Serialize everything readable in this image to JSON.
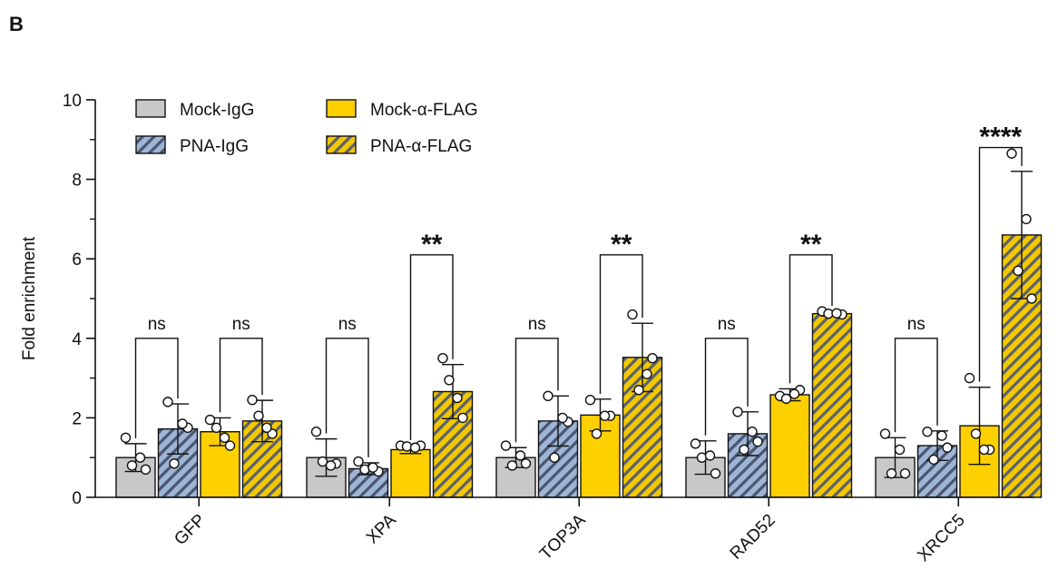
{
  "panel_label": "B",
  "colors": {
    "mock_igg": "#c8c8c8",
    "pna_igg_base": "#9fb5d6",
    "pna_igg_stripe": "#4a5670",
    "mock_flag": "#ffd000",
    "pna_flag_base": "#f2c800",
    "pna_flag_stripe": "#5b6070",
    "axis": "#111111"
  },
  "chart_data": {
    "type": "bar",
    "title": "",
    "xlabel": "",
    "ylabel": "Fold enrichment",
    "ylim": [
      0,
      10
    ],
    "yticks": [
      "0",
      "2",
      "4",
      "6",
      "8",
      "10"
    ],
    "categories": [
      "GFP",
      "XPA",
      "TOP3A",
      "RAD52",
      "XRCC5"
    ],
    "legend": {
      "placement": "top-left",
      "columns": 2
    },
    "series": [
      {
        "name": "Mock-IgG",
        "pattern": "solid-gray",
        "values": [
          1.0,
          1.0,
          1.0,
          1.0,
          1.0
        ],
        "sd": [
          0.35,
          0.47,
          0.25,
          0.42,
          0.5
        ],
        "points": [
          [
            1.5,
            0.7,
            0.8,
            1.0
          ],
          [
            1.65,
            0.85,
            0.9,
            0.8
          ],
          [
            1.3,
            0.85,
            0.8,
            1.05
          ],
          [
            1.35,
            0.6,
            1.0,
            1.05
          ],
          [
            1.6,
            0.6,
            0.6,
            1.2
          ]
        ]
      },
      {
        "name": "PNA-IgG",
        "pattern": "striped-blue",
        "values": [
          1.72,
          0.72,
          1.92,
          1.6,
          1.3
        ],
        "sd": [
          0.63,
          0.15,
          0.63,
          0.55,
          0.37
        ],
        "points": [
          [
            2.4,
            1.75,
            0.85,
            1.85
          ],
          [
            0.9,
            0.65,
            0.7,
            0.75
          ],
          [
            2.55,
            1.9,
            1.0,
            2.0
          ],
          [
            2.15,
            1.4,
            1.2,
            1.65
          ],
          [
            1.65,
            1.25,
            0.95,
            1.55
          ]
        ]
      },
      {
        "name": "Mock-α-FLAG",
        "pattern": "solid-yellow",
        "values": [
          1.65,
          1.2,
          2.07,
          2.58,
          1.8
        ],
        "sd": [
          0.35,
          0.1,
          0.4,
          0.15,
          0.97
        ],
        "points": [
          [
            1.95,
            1.3,
            1.75,
            1.5
          ],
          [
            1.3,
            1.3,
            1.28,
            1.25
          ],
          [
            2.45,
            2.05,
            1.6,
            2.05
          ],
          [
            2.55,
            2.7,
            2.48,
            2.6
          ],
          [
            3.0,
            1.2,
            1.6,
            1.2
          ]
        ]
      },
      {
        "name": "PNA-α-FLAG",
        "pattern": "striped-yellow",
        "values": [
          1.92,
          2.66,
          3.52,
          4.62,
          6.6
        ],
        "sd": [
          0.52,
          0.68,
          0.86,
          0.06,
          1.6
        ],
        "points": [
          [
            2.45,
            1.6,
            2.05,
            1.75
          ],
          [
            3.5,
            2.0,
            2.95,
            2.5
          ],
          [
            4.6,
            3.5,
            2.7,
            3.1
          ],
          [
            4.68,
            4.6,
            4.62,
            4.63
          ],
          [
            8.65,
            5.0,
            5.7,
            7.0
          ]
        ]
      }
    ],
    "comparisons": [
      {
        "category": 0,
        "from": 0,
        "to": 1,
        "label": "ns",
        "y": 4.0
      },
      {
        "category": 0,
        "from": 2,
        "to": 3,
        "label": "ns",
        "y": 4.0
      },
      {
        "category": 1,
        "from": 0,
        "to": 1,
        "label": "ns",
        "y": 4.0
      },
      {
        "category": 1,
        "from": 2,
        "to": 3,
        "label": "**",
        "y": 6.1
      },
      {
        "category": 2,
        "from": 0,
        "to": 1,
        "label": "ns",
        "y": 4.0
      },
      {
        "category": 2,
        "from": 2,
        "to": 3,
        "label": "**",
        "y": 6.1
      },
      {
        "category": 3,
        "from": 0,
        "to": 1,
        "label": "ns",
        "y": 4.0
      },
      {
        "category": 3,
        "from": 2,
        "to": 3,
        "label": "**",
        "y": 6.1
      },
      {
        "category": 4,
        "from": 0,
        "to": 1,
        "label": "ns",
        "y": 4.0
      },
      {
        "category": 4,
        "from": 2,
        "to": 3,
        "label": "****",
        "y": 8.8
      }
    ]
  }
}
